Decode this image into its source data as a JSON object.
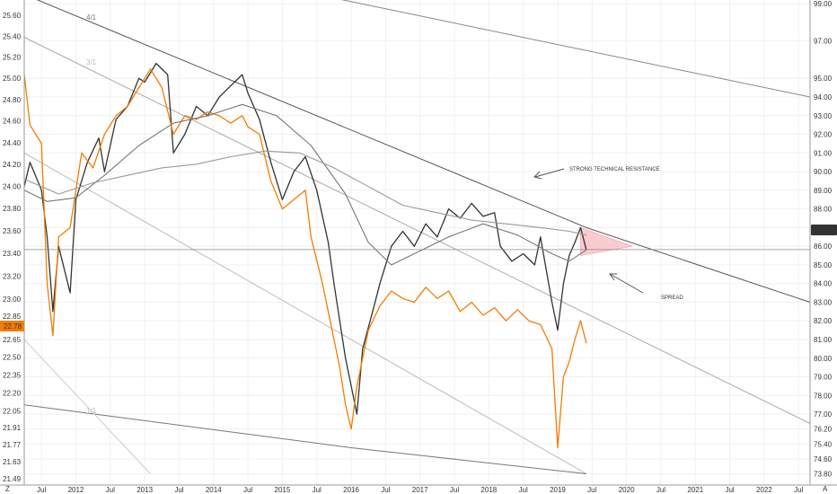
{
  "chart_data": {
    "type": "line",
    "x_start": "2011-04",
    "x_end": "2022-09",
    "x_tick_labels": [
      {
        "label": "Jul",
        "date": "2011-07"
      },
      {
        "label": "2012",
        "date": "2012-01"
      },
      {
        "label": "Jul",
        "date": "2012-07"
      },
      {
        "label": "2013",
        "date": "2013-01"
      },
      {
        "label": "Jul",
        "date": "2013-07"
      },
      {
        "label": "2014",
        "date": "2014-01"
      },
      {
        "label": "Jul",
        "date": "2014-07"
      },
      {
        "label": "2015",
        "date": "2015-01"
      },
      {
        "label": "Jul",
        "date": "2015-07"
      },
      {
        "label": "2016",
        "date": "2016-01"
      },
      {
        "label": "Jul",
        "date": "2016-07"
      },
      {
        "label": "2017",
        "date": "2017-01"
      },
      {
        "label": "Jul",
        "date": "2017-07"
      },
      {
        "label": "2018",
        "date": "2018-01"
      },
      {
        "label": "Jul",
        "date": "2018-07"
      },
      {
        "label": "2019",
        "date": "2019-01"
      },
      {
        "label": "Jul",
        "date": "2019-07"
      },
      {
        "label": "2020",
        "date": "2020-01"
      },
      {
        "label": "Jul",
        "date": "2020-07"
      },
      {
        "label": "2021",
        "date": "2021-01"
      },
      {
        "label": "Jul",
        "date": "2021-07"
      },
      {
        "label": "2022",
        "date": "2022-01"
      },
      {
        "label": "Jul",
        "date": "2022-07"
      }
    ],
    "left_axis": {
      "scale": "log",
      "ylim": [
        21.44,
        25.75
      ],
      "ticks": [
        "25.60",
        "25.40",
        "25.20",
        "25.00",
        "24.80",
        "24.60",
        "24.40",
        "24.20",
        "24.00",
        "23.80",
        "23.60",
        "23.40",
        "23.20",
        "23.00",
        "22.85",
        "22.65",
        "22.50",
        "22.35",
        "22.20",
        "22.05",
        "21.91",
        "21.77",
        "21.63",
        "21.49"
      ],
      "last_value_label": "22.78",
      "last_value_color": "#f57c00"
    },
    "right_axis": {
      "ylim": [
        73.2,
        99.2
      ],
      "ticks": [
        "99.00",
        "97.00",
        "95.00",
        "94.00",
        "93.00",
        "92.00",
        "91.00",
        "90.00",
        "89.00",
        "88.00",
        "87.00",
        "86.00",
        "85.00",
        "84.00",
        "83.00",
        "82.00",
        "81.00",
        "80.00",
        "79.00",
        "78.00",
        "77.00",
        "76.20",
        "75.40",
        "74.60",
        "73.80"
      ],
      "last_value_label": "85.82"
    },
    "series": [
      {
        "axis": "right",
        "color": "#333333",
        "points": [
          [
            "2011-04",
            89.2
          ],
          [
            "2011-05",
            90.5
          ],
          [
            "2011-07",
            89.0
          ],
          [
            "2011-08",
            86.5
          ],
          [
            "2011-09",
            82.5
          ],
          [
            "2011-10",
            86.0
          ],
          [
            "2011-12",
            83.5
          ],
          [
            "2012-01",
            88.5
          ],
          [
            "2012-03",
            90.5
          ],
          [
            "2012-05",
            91.8
          ],
          [
            "2012-06",
            90.0
          ],
          [
            "2012-08",
            92.8
          ],
          [
            "2012-10",
            93.5
          ],
          [
            "2012-12",
            95.0
          ],
          [
            "2013-01",
            94.8
          ],
          [
            "2013-03",
            95.8
          ],
          [
            "2013-05",
            95.2
          ],
          [
            "2013-06",
            91.0
          ],
          [
            "2013-08",
            92.0
          ],
          [
            "2013-10",
            93.5
          ],
          [
            "2013-12",
            93.0
          ],
          [
            "2014-02",
            94.0
          ],
          [
            "2014-04",
            94.6
          ],
          [
            "2014-06",
            95.2
          ],
          [
            "2014-07",
            94.2
          ],
          [
            "2014-09",
            92.8
          ],
          [
            "2014-11",
            90.5
          ],
          [
            "2015-01",
            88.5
          ],
          [
            "2015-03",
            90.0
          ],
          [
            "2015-05",
            90.8
          ],
          [
            "2015-07",
            89.0
          ],
          [
            "2015-09",
            86.2
          ],
          [
            "2015-10",
            84.0
          ],
          [
            "2015-12",
            80.0
          ],
          [
            "2016-01",
            78.5
          ],
          [
            "2016-02",
            77.0
          ],
          [
            "2016-03",
            80.5
          ],
          [
            "2016-05",
            82.8
          ],
          [
            "2016-06",
            84.0
          ],
          [
            "2016-08",
            86.0
          ],
          [
            "2016-10",
            86.8
          ],
          [
            "2016-12",
            86.0
          ],
          [
            "2017-02",
            87.2
          ],
          [
            "2017-04",
            86.5
          ],
          [
            "2017-06",
            88.0
          ],
          [
            "2017-08",
            87.5
          ],
          [
            "2017-10",
            88.3
          ],
          [
            "2017-12",
            87.6
          ],
          [
            "2018-02",
            87.8
          ],
          [
            "2018-03",
            86.0
          ],
          [
            "2018-05",
            85.2
          ],
          [
            "2018-07",
            85.6
          ],
          [
            "2018-09",
            85.0
          ],
          [
            "2018-10",
            86.5
          ],
          [
            "2018-12",
            83.0
          ],
          [
            "2019-01",
            81.5
          ],
          [
            "2019-02",
            84.0
          ],
          [
            "2019-03",
            85.5
          ],
          [
            "2019-04",
            86.2
          ],
          [
            "2019-05",
            87.0
          ],
          [
            "2019-06",
            85.8
          ]
        ]
      },
      {
        "axis": "right",
        "color": "#f57c00",
        "points": [
          [
            "2011-04",
            95.2
          ],
          [
            "2011-05",
            92.5
          ],
          [
            "2011-07",
            91.5
          ],
          [
            "2011-08",
            84.0
          ],
          [
            "2011-09",
            81.2
          ],
          [
            "2011-10",
            86.5
          ],
          [
            "2011-12",
            87.0
          ],
          [
            "2012-02",
            91.0
          ],
          [
            "2012-04",
            90.2
          ],
          [
            "2012-06",
            92.0
          ],
          [
            "2012-08",
            93.0
          ],
          [
            "2012-10",
            93.5
          ],
          [
            "2012-12",
            94.5
          ],
          [
            "2013-02",
            95.5
          ],
          [
            "2013-04",
            94.5
          ],
          [
            "2013-06",
            92.0
          ],
          [
            "2013-08",
            93.0
          ],
          [
            "2013-10",
            92.8
          ],
          [
            "2013-12",
            93.2
          ],
          [
            "2014-02",
            93.0
          ],
          [
            "2014-04",
            92.6
          ],
          [
            "2014-06",
            93.0
          ],
          [
            "2014-07",
            92.4
          ],
          [
            "2014-09",
            92.0
          ],
          [
            "2014-11",
            89.5
          ],
          [
            "2015-01",
            88.0
          ],
          [
            "2015-03",
            88.5
          ],
          [
            "2015-05",
            89.0
          ],
          [
            "2015-06",
            86.5
          ],
          [
            "2015-08",
            84.0
          ],
          [
            "2015-09",
            82.5
          ],
          [
            "2015-11",
            79.5
          ],
          [
            "2015-12",
            77.5
          ],
          [
            "2016-01",
            76.2
          ],
          [
            "2016-02",
            78.5
          ],
          [
            "2016-04",
            81.5
          ],
          [
            "2016-06",
            82.8
          ],
          [
            "2016-08",
            83.6
          ],
          [
            "2016-10",
            83.2
          ],
          [
            "2016-12",
            83.0
          ],
          [
            "2017-02",
            83.8
          ],
          [
            "2017-04",
            83.2
          ],
          [
            "2017-06",
            83.6
          ],
          [
            "2017-08",
            82.5
          ],
          [
            "2017-10",
            83.0
          ],
          [
            "2017-12",
            82.3
          ],
          [
            "2018-02",
            82.7
          ],
          [
            "2018-04",
            82.0
          ],
          [
            "2018-06",
            82.6
          ],
          [
            "2018-08",
            82.0
          ],
          [
            "2018-10",
            81.8
          ],
          [
            "2018-12",
            80.5
          ],
          [
            "2019-01",
            75.2
          ],
          [
            "2019-02",
            79.0
          ],
          [
            "2019-03",
            79.8
          ],
          [
            "2019-04",
            81.0
          ],
          [
            "2019-05",
            82.0
          ],
          [
            "2019-06",
            80.8
          ]
        ]
      },
      {
        "axis": "right",
        "color": "#777777",
        "points": [
          [
            "2011-04",
            89.0
          ],
          [
            "2011-08",
            88.4
          ],
          [
            "2012-01",
            88.6
          ],
          [
            "2012-06",
            89.8
          ],
          [
            "2012-12",
            91.4
          ],
          [
            "2013-06",
            92.6
          ],
          [
            "2013-12",
            93.0
          ],
          [
            "2014-06",
            93.6
          ],
          [
            "2014-12",
            93.0
          ],
          [
            "2015-06",
            91.4
          ],
          [
            "2015-12",
            88.8
          ],
          [
            "2016-04",
            86.2
          ],
          [
            "2016-08",
            85.0
          ],
          [
            "2016-12",
            85.6
          ],
          [
            "2017-06",
            86.5
          ],
          [
            "2017-12",
            87.2
          ],
          [
            "2018-06",
            86.6
          ],
          [
            "2018-12",
            85.6
          ],
          [
            "2019-03",
            85.2
          ],
          [
            "2019-06",
            85.8
          ]
        ]
      },
      {
        "axis": "right",
        "color": "#999999",
        "points": [
          [
            "2011-04",
            89.6
          ],
          [
            "2011-10",
            88.8
          ],
          [
            "2012-04",
            89.4
          ],
          [
            "2012-10",
            89.8
          ],
          [
            "2013-04",
            90.2
          ],
          [
            "2013-10",
            90.4
          ],
          [
            "2014-04",
            90.8
          ],
          [
            "2014-10",
            91.1
          ],
          [
            "2015-04",
            91.0
          ],
          [
            "2015-10",
            90.2
          ],
          [
            "2016-04",
            89.2
          ],
          [
            "2016-10",
            88.2
          ],
          [
            "2017-04",
            87.8
          ],
          [
            "2017-10",
            87.4
          ],
          [
            "2018-04",
            87.2
          ],
          [
            "2018-10",
            87.0
          ],
          [
            "2019-03",
            86.8
          ],
          [
            "2019-06",
            86.6
          ]
        ]
      }
    ],
    "trendlines": [
      {
        "color": "#555555",
        "points": [
          [
            "2011-04",
            99.5
          ],
          [
            "2019-06",
            87.0
          ],
          [
            "2022-09",
            83.0
          ]
        ]
      },
      {
        "color": "#888888",
        "points": [
          [
            "2015-07",
            99.5
          ],
          [
            "2022-09",
            94.0
          ]
        ]
      },
      {
        "color": "#aaaaaa",
        "points": [
          [
            "2011-04",
            97.2
          ],
          [
            "2022-09",
            76.5
          ]
        ]
      },
      {
        "color": "#bbbbbb",
        "points": [
          [
            "2011-04",
            91.0
          ],
          [
            "2019-06",
            73.8
          ]
        ]
      },
      {
        "color": "#777777",
        "points": [
          [
            "2011-04",
            77.5
          ],
          [
            "2016-01",
            75.2
          ],
          [
            "2019-06",
            73.8
          ]
        ]
      },
      {
        "color": "#cccccc",
        "points": [
          [
            "2011-04",
            81.0
          ],
          [
            "2013-02",
            73.8
          ]
        ]
      }
    ],
    "highlight": {
      "color": "#f8c4c8",
      "points": [
        [
          "2019-05",
          87.0
        ],
        [
          "2020-02",
          86.0
        ],
        [
          "2019-05",
          85.5
        ]
      ]
    },
    "horizontal_line": 85.82,
    "fan_labels": [
      "4/1",
      "3/1",
      "1/1"
    ],
    "annotations": {
      "resistance": "STRONG TECHNICAL RESISTANCE",
      "spread": "SPREAD"
    },
    "grid": true
  }
}
